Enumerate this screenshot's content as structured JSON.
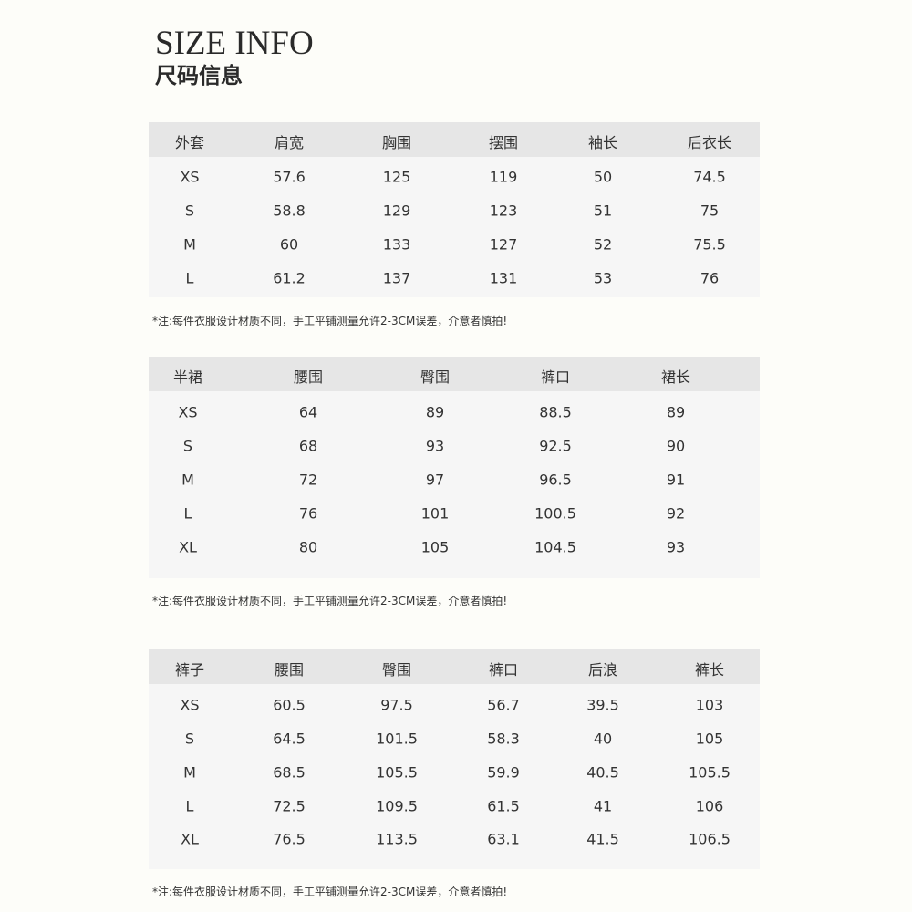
{
  "header": {
    "title": "SIZE INFO",
    "subtitle": "尺码信息"
  },
  "tables": [
    {
      "headers": [
        "外套",
        "肩宽",
        "胸围",
        "摆围",
        "袖长",
        "后衣长"
      ],
      "rows": [
        [
          "XS",
          "57.6",
          "125",
          "119",
          "50",
          "74.5"
        ],
        [
          "S",
          "58.8",
          "129",
          "123",
          "51",
          "75"
        ],
        [
          "M",
          "60",
          "133",
          "127",
          "52",
          "75.5"
        ],
        [
          "L",
          "61.2",
          "137",
          "131",
          "53",
          "76"
        ]
      ],
      "note": "*注:每件衣服设计材质不同，手工平铺测量允许2-3CM误差，介意者慎拍!"
    },
    {
      "headers": [
        "半裙",
        "腰围",
        "臀围",
        "裤口",
        "裙长"
      ],
      "rows": [
        [
          "XS",
          "64",
          "89",
          "88.5",
          "89"
        ],
        [
          "S",
          "68",
          "93",
          "92.5",
          "90"
        ],
        [
          "M",
          "72",
          "97",
          "96.5",
          "91"
        ],
        [
          "L",
          "76",
          "101",
          "100.5",
          "92"
        ],
        [
          "XL",
          "80",
          "105",
          "104.5",
          "93"
        ]
      ],
      "note": "*注:每件衣服设计材质不同，手工平铺测量允许2-3CM误差，介意者慎拍!"
    },
    {
      "headers": [
        "裤子",
        "腰围",
        "臀围",
        "裤口",
        "后浪",
        "裤长"
      ],
      "rows": [
        [
          "XS",
          "60.5",
          "97.5",
          "56.7",
          "39.5",
          "103"
        ],
        [
          "S",
          "64.5",
          "101.5",
          "58.3",
          "40",
          "105"
        ],
        [
          "M",
          "68.5",
          "105.5",
          "59.9",
          "40.5",
          "105.5"
        ],
        [
          "L",
          "72.5",
          "109.5",
          "61.5",
          "41",
          "106"
        ],
        [
          "XL",
          "76.5",
          "113.5",
          "63.1",
          "41.5",
          "106.5"
        ]
      ],
      "note": "*注:每件衣服设计材质不同，手工平铺测量允许2-3CM误差，介意者慎拍!"
    }
  ]
}
